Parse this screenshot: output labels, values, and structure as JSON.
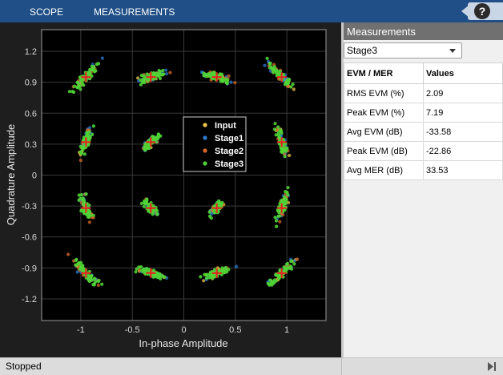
{
  "toolbar": {
    "tabs": [
      "SCOPE",
      "MEASUREMENTS"
    ],
    "help_symbol": "?"
  },
  "plot": {
    "xlabel": "In-phase Amplitude",
    "ylabel": "Quadrature Amplitude",
    "xticks": [
      "-1",
      "-0.5",
      "0",
      "0.5",
      "1"
    ],
    "yticks": [
      "1.2",
      "0.9",
      "0.6",
      "0.3",
      "0",
      "-0.3",
      "-0.6",
      "-0.9",
      "-1.2"
    ]
  },
  "chart_data": {
    "type": "scatter",
    "xlabel": "In-phase Amplitude",
    "ylabel": "Quadrature Amplitude",
    "xlim": [
      -1.38,
      1.38
    ],
    "ylim": [
      -1.41,
      1.41
    ],
    "grid": true,
    "legend_position": "center-right",
    "reference_marker": "red-plus",
    "reference_points": [
      [
        -0.95,
        0.95
      ],
      [
        -0.32,
        0.95
      ],
      [
        0.32,
        0.95
      ],
      [
        0.95,
        0.95
      ],
      [
        -0.95,
        0.32
      ],
      [
        -0.32,
        0.32
      ],
      [
        0.32,
        0.32
      ],
      [
        0.95,
        0.32
      ],
      [
        -0.95,
        -0.32
      ],
      [
        -0.32,
        -0.32
      ],
      [
        0.32,
        -0.32
      ],
      [
        0.95,
        -0.32
      ],
      [
        -0.95,
        -0.95
      ],
      [
        -0.32,
        -0.95
      ],
      [
        0.32,
        -0.95
      ],
      [
        0.95,
        -0.95
      ]
    ],
    "series": [
      {
        "name": "Input",
        "color": "#edc548"
      },
      {
        "name": "Stage1",
        "color": "#2b7bd1"
      },
      {
        "name": "Stage2",
        "color": "#d9692a"
      },
      {
        "name": "Stage3",
        "color": "#4fd435"
      }
    ]
  },
  "measurements": {
    "title": "Measurements",
    "selected": "Stage3",
    "columns": [
      "EVM / MER",
      "Values"
    ],
    "rows": [
      {
        "label": "RMS EVM (%)",
        "value": "2.09"
      },
      {
        "label": "Peak EVM (%)",
        "value": "7.19"
      },
      {
        "label": "Avg EVM (dB)",
        "value": "-33.58"
      },
      {
        "label": "Peak EVM (dB)",
        "value": "-22.86"
      },
      {
        "label": "Avg MER (dB)",
        "value": "33.53"
      }
    ]
  },
  "status": {
    "text": "Stopped"
  },
  "icons": {
    "help": "help-icon",
    "dropdown": "chevron-down-icon",
    "panel_toggle": "panel-toggle-icon"
  }
}
